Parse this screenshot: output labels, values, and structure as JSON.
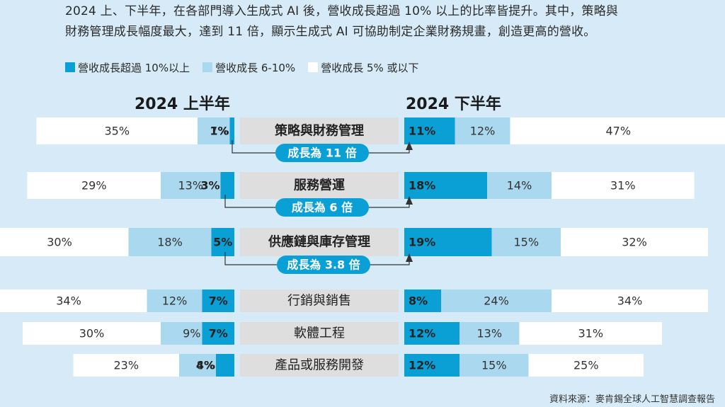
{
  "intro": {
    "line1": "2024 上、下半年，在各部門導入生成式 AI 後，營收成長超過 10% 以上的比率皆提升。其中，策略與",
    "line2": "財務管理成長幅度最大，達到 11 倍，顯示生成式 AI 可協助制定企業財務規畫，創造更高的營收。"
  },
  "legend": [
    {
      "label": "營收成長超過 10%以上",
      "color": "#0aa0d6"
    },
    {
      "label": "營收成長 6-10%",
      "color": "#a9d8ef"
    },
    {
      "label": "營收成長 5% 或以下",
      "color": "#ffffff"
    }
  ],
  "titles": {
    "h1": "2024 上半年",
    "h2": "2024 下半年"
  },
  "source": "資料來源：麥肯錫全球人工智慧調查報告",
  "colors": {
    "high": "#0aa0d6",
    "mid": "#a9d8ef",
    "low": "#ffffff",
    "category_bg": "#dedede"
  },
  "chart_data": {
    "type": "bar",
    "orientation": "horizontal-diverging",
    "categories": [
      "策略與財務管理",
      "服務營運",
      "供應鏈與庫存管理",
      "行銷與銷售",
      "軟體工程",
      "產品或服務開發"
    ],
    "series_h1": [
      {
        "name": "營收成長超過 10%以上",
        "values": [
          1,
          3,
          5,
          7,
          7,
          4
        ]
      },
      {
        "name": "營收成長 6-10%",
        "values": [
          7,
          13,
          18,
          12,
          9,
          8
        ]
      },
      {
        "name": "營收成長 5% 或以下",
        "values": [
          35,
          29,
          30,
          34,
          30,
          23
        ]
      }
    ],
    "series_h2": [
      {
        "name": "營收成長超過 10%以上",
        "values": [
          11,
          18,
          19,
          8,
          12,
          12
        ]
      },
      {
        "name": "營收成長 6-10%",
        "values": [
          12,
          14,
          15,
          24,
          13,
          15
        ]
      },
      {
        "name": "營收成長 5% 或以下",
        "values": [
          47,
          31,
          32,
          34,
          31,
          25
        ]
      }
    ],
    "growth_labels": [
      "成長為 11 倍",
      "成長為 6 倍",
      "成長為 3.8 倍"
    ]
  }
}
